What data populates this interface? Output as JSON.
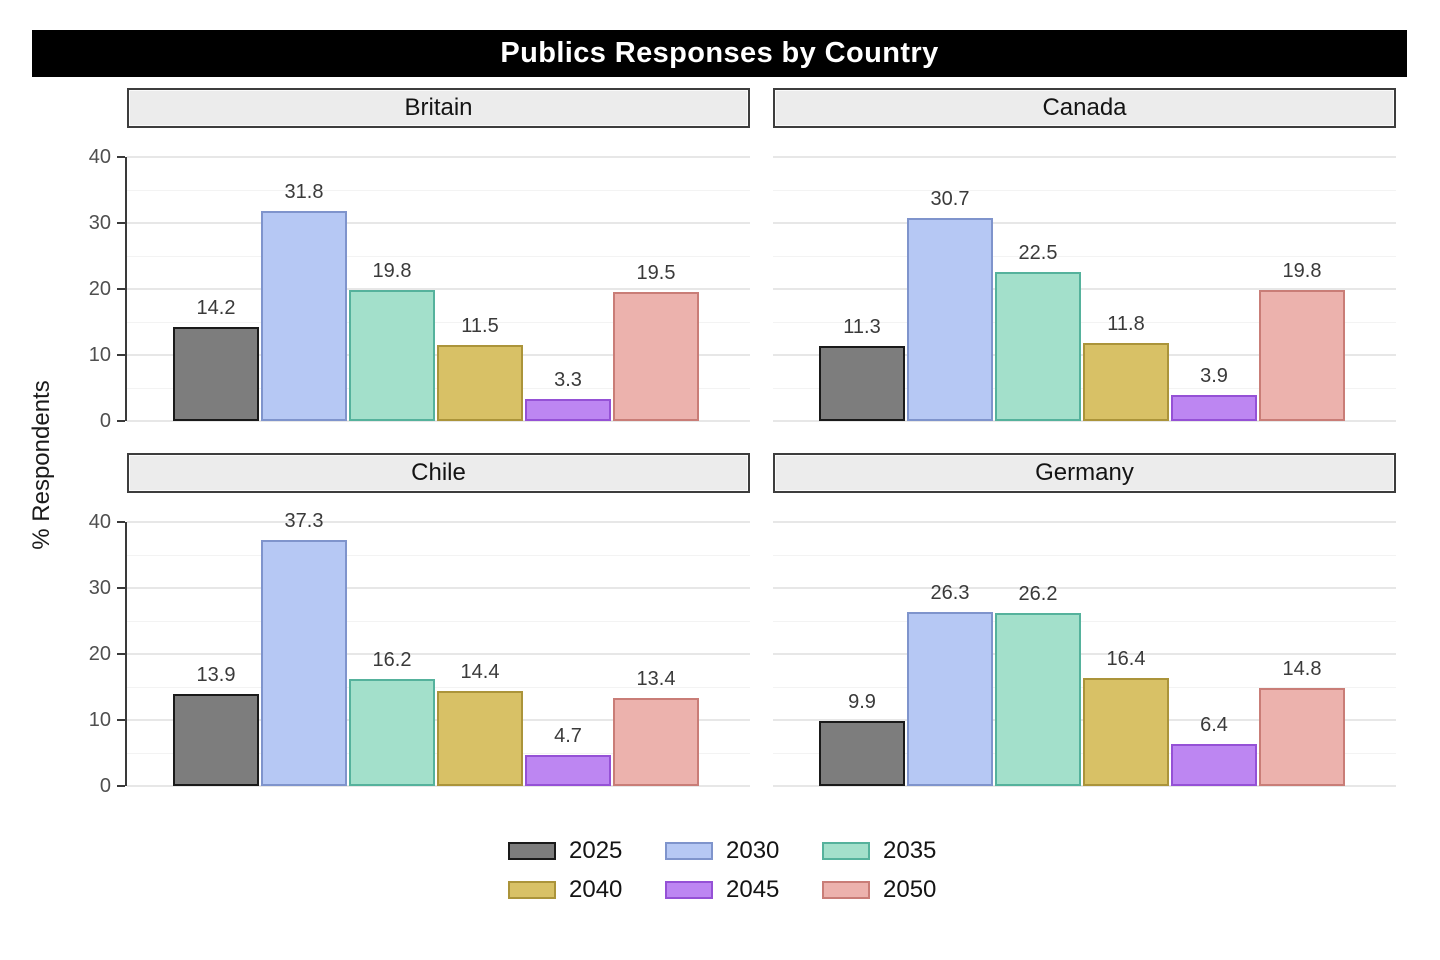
{
  "title": "Publics Responses by Country",
  "y_axis": {
    "label": "% Respondents",
    "tick_labels": [
      "0",
      "10",
      "20",
      "30",
      "40"
    ]
  },
  "chart_data": {
    "type": "bar",
    "title": "Publics Responses by Country",
    "xlabel": "",
    "ylabel": "% Respondents",
    "ylim": [
      0,
      40
    ],
    "y_ticks": [
      0,
      10,
      20,
      30,
      40
    ],
    "y_minor_ticks": [
      5,
      15,
      25,
      35
    ],
    "grid": true,
    "legend_position": "bottom",
    "categories": [
      "2025",
      "2030",
      "2035",
      "2040",
      "2045",
      "2050"
    ],
    "facets": [
      {
        "name": "Britain",
        "values": [
          14.2,
          31.8,
          19.8,
          11.5,
          3.3,
          19.5
        ]
      },
      {
        "name": "Canada",
        "values": [
          11.3,
          30.7,
          22.5,
          11.8,
          3.9,
          19.8
        ]
      },
      {
        "name": "Chile",
        "values": [
          13.9,
          37.3,
          16.2,
          14.4,
          4.7,
          13.4
        ]
      },
      {
        "name": "Germany",
        "values": [
          9.9,
          26.3,
          26.2,
          16.4,
          6.4,
          14.8
        ]
      }
    ],
    "series_styles": [
      {
        "label": "2025",
        "fill": "#7d7d7d",
        "border": "#1a1a1a"
      },
      {
        "label": "2030",
        "fill": "#b6c8f4",
        "border": "#7f94cc"
      },
      {
        "label": "2035",
        "fill": "#a3e0cb",
        "border": "#55b29c"
      },
      {
        "label": "2040",
        "fill": "#d8c166",
        "border": "#ab943a"
      },
      {
        "label": "2045",
        "fill": "#bd86f2",
        "border": "#9551d6"
      },
      {
        "label": "2050",
        "fill": "#ecb2ad",
        "border": "#c97d77"
      }
    ]
  },
  "colors": {
    "title_bg": "#000000",
    "title_text": "#ffffff",
    "strip_bg": "#ececec",
    "strip_border": "#3d3d3d",
    "grid_major": "#e7e7e7",
    "grid_minor": "#f3f3f3",
    "axis": "#3a3a3a",
    "tick_label": "#4f4f4f",
    "value_label": "#3a3a3a"
  }
}
